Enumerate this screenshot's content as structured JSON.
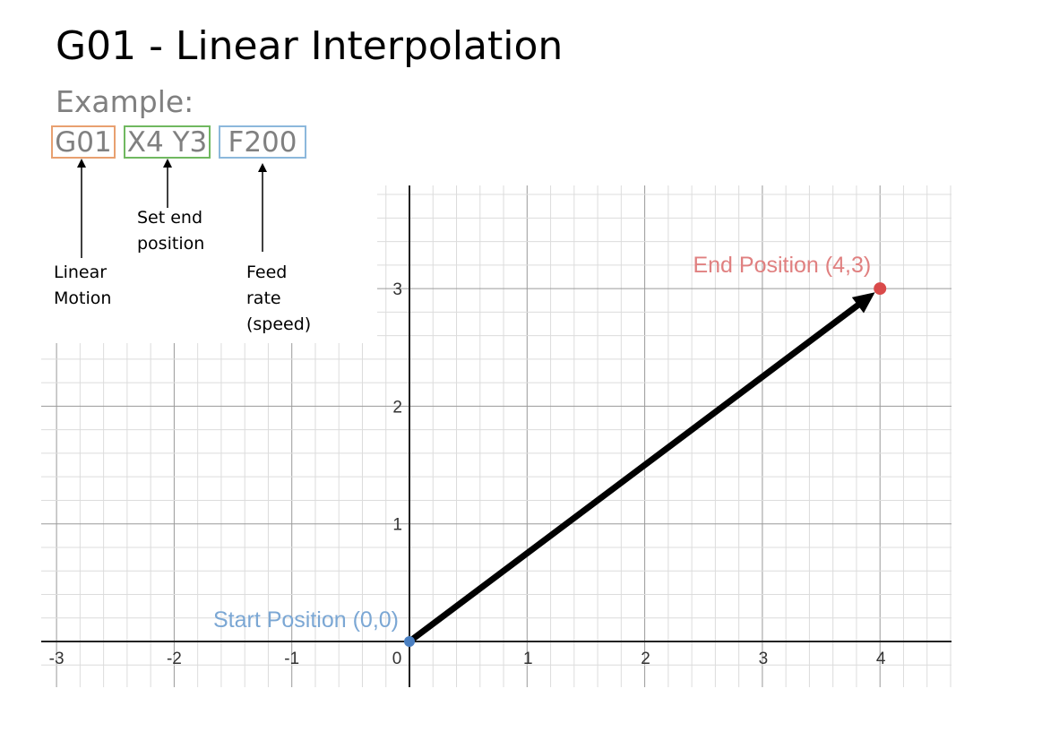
{
  "title": "G01 - Linear Interpolation",
  "example_label": "Example:",
  "code_parts": [
    {
      "text": "G01",
      "color": "#e8a070"
    },
    {
      "text": "X4 Y3",
      "color": "#70b860"
    },
    {
      "text": "F200",
      "color": "#8cb8dc"
    }
  ],
  "annotations": [
    {
      "lines": [
        "Linear",
        "Motion"
      ]
    },
    {
      "lines": [
        "Set end",
        "position"
      ]
    },
    {
      "lines": [
        "Feed",
        "rate",
        "(speed)"
      ]
    }
  ],
  "chart_data": {
    "type": "line",
    "x_ticks": [
      "-3",
      "-2",
      "-1",
      "0",
      "1",
      "2",
      "3",
      "4"
    ],
    "y_ticks": [
      "1",
      "2",
      "3"
    ],
    "xlim": [
      -3.1,
      4.6
    ],
    "ylim": [
      -0.4,
      3.9
    ],
    "start": {
      "x": 0,
      "y": 0,
      "label": "Start Position (0,0)",
      "color": "#4a7fc1",
      "label_color": "#7ba7d4"
    },
    "end": {
      "x": 4,
      "y": 3,
      "label": "End Position (4,3)",
      "color": "#d94a4a",
      "label_color": "#e08080"
    },
    "path_color": "#000000",
    "grid": true
  }
}
